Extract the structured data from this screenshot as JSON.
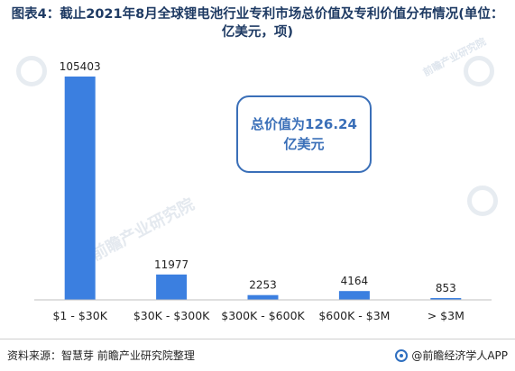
{
  "title": "图表4：截止2021年8月全球锂电池行业专利市场总价值及专利价值分布情况(单位：亿美元，项)",
  "callout": {
    "line1": "总价值为126.24",
    "line2": "亿美元"
  },
  "footer": {
    "source": "资料来源：智慧芽 前瞻产业研究院整理",
    "brand": "@前瞻经济学人APP"
  },
  "watermarks": {
    "brand_center": "前瞻产业研究院",
    "brand_corner": "前瞻产业研究院"
  },
  "colors": {
    "bar": "#3b7fe0",
    "axis": "#bfbfbf",
    "title": "#1f3b64",
    "callout": "#3a6fb8"
  },
  "chart_data": {
    "type": "bar",
    "categories": [
      "$1 - $30K",
      "$30K - $300K",
      "$300K - $600K",
      "$600K - $3M",
      "> $3M"
    ],
    "values": [
      105403,
      11977,
      2253,
      4164,
      853
    ],
    "title": "图表4：截止2021年8月全球锂电池行业专利市场总价值及专利价值分布情况(单位：亿美元，项)",
    "xlabel": "",
    "ylabel": "",
    "ylim": [
      0,
      105403
    ],
    "grid": false,
    "legend": "none"
  }
}
